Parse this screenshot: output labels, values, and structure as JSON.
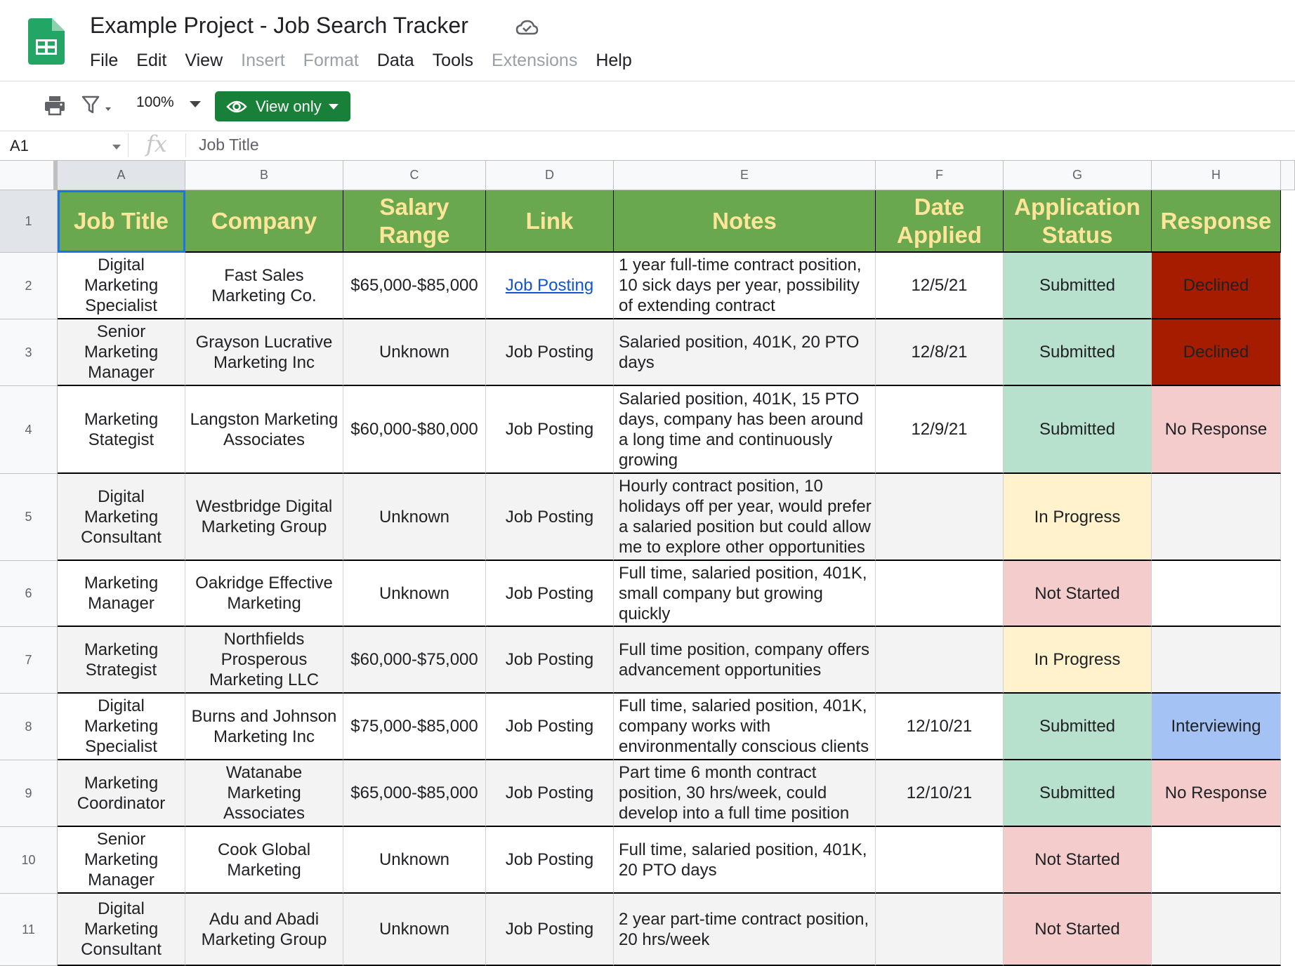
{
  "app": {
    "title": "Example Project - Job Search Tracker",
    "menu": [
      {
        "label": "File",
        "enabled": true
      },
      {
        "label": "Edit",
        "enabled": true
      },
      {
        "label": "View",
        "enabled": true
      },
      {
        "label": "Insert",
        "enabled": false
      },
      {
        "label": "Format",
        "enabled": false
      },
      {
        "label": "Data",
        "enabled": true
      },
      {
        "label": "Tools",
        "enabled": true
      },
      {
        "label": "Extensions",
        "enabled": false
      },
      {
        "label": "Help",
        "enabled": true
      }
    ]
  },
  "toolbar": {
    "zoom": "100%",
    "view_only_label": "View only",
    "accent": "#188038",
    "icons": [
      "printer-icon",
      "filter-icon",
      "eye-icon",
      "cloud-icon"
    ]
  },
  "formula_bar": {
    "cell_ref": "A1",
    "fx": "fx",
    "content": "Job Title"
  },
  "sheet": {
    "column_letters": [
      "A",
      "B",
      "C",
      "D",
      "E",
      "F",
      "G",
      "H"
    ],
    "row_numbers": [
      "1",
      "2",
      "3",
      "4",
      "5",
      "6",
      "7",
      "8",
      "9",
      "10",
      "11"
    ],
    "header_color": "#6aa84f",
    "header_text_color": "#ffe599",
    "headers": [
      "Job Title",
      "Company",
      "Salary Range",
      "Link",
      "Notes",
      "Date Applied",
      "Application Status",
      "Response"
    ],
    "rows": [
      {
        "job_title": "Digital Marketing Specialist",
        "company": "Fast Sales Marketing Co.",
        "salary": "$65,000-$85,000",
        "link": "Job Posting",
        "link_is_hyperlink": true,
        "notes": "1 year full-time contract position, 10 sick days per year, possibility of extending contract",
        "date": "12/5/21",
        "status": "Submitted",
        "response": "Declined"
      },
      {
        "job_title": "Senior Marketing Manager",
        "company": "Grayson Lucrative Marketing Inc",
        "salary": "Unknown",
        "link": "Job Posting",
        "link_is_hyperlink": false,
        "notes": "Salaried position, 401K, 20 PTO days",
        "date": "12/8/21",
        "status": "Submitted",
        "response": "Declined"
      },
      {
        "job_title": "Marketing Stategist",
        "company": "Langston Marketing Associates",
        "salary": "$60,000-$80,000",
        "link": "Job Posting",
        "link_is_hyperlink": false,
        "notes": "Salaried position, 401K, 15 PTO days, company has been around a long time and continuously growing",
        "date": "12/9/21",
        "status": "Submitted",
        "response": "No Response"
      },
      {
        "job_title": "Digital Marketing Consultant",
        "company": "Westbridge Digital Marketing Group",
        "salary": "Unknown",
        "link": "Job Posting",
        "link_is_hyperlink": false,
        "notes": "Hourly contract position, 10 holidays off per year, would prefer a salaried position but could allow me to explore other opportunities",
        "date": "",
        "status": "In Progress",
        "response": ""
      },
      {
        "job_title": "Marketing Manager",
        "company": "Oakridge Effective Marketing",
        "salary": "Unknown",
        "link": "Job Posting",
        "link_is_hyperlink": false,
        "notes": "Full time, salaried position, 401K, small company but growing quickly",
        "date": "",
        "status": "Not Started",
        "response": ""
      },
      {
        "job_title": "Marketing Strategist",
        "company": "Northfields Prosperous Marketing LLC",
        "salary": "$60,000-$75,000",
        "link": "Job Posting",
        "link_is_hyperlink": false,
        "notes": "Full time position, company offers advancement opportunities",
        "date": "",
        "status": "In Progress",
        "response": ""
      },
      {
        "job_title": "Digital Marketing Specialist",
        "company": "Burns and Johnson Marketing Inc",
        "salary": "$75,000-$85,000",
        "link": "Job Posting",
        "link_is_hyperlink": false,
        "notes": "Full time, salaried position, 401K, company works with environmentally conscious clients",
        "date": "12/10/21",
        "status": "Submitted",
        "response": "Interviewing"
      },
      {
        "job_title": "Marketing Coordinator",
        "company": "Watanabe Marketing Associates",
        "salary": "$65,000-$85,000",
        "link": "Job Posting",
        "link_is_hyperlink": false,
        "notes": "Part time 6 month contract position, 30 hrs/week, could develop into a full time position",
        "date": "12/10/21",
        "status": "Submitted",
        "response": "No Response"
      },
      {
        "job_title": "Senior Marketing Manager",
        "company": "Cook Global Marketing",
        "salary": "Unknown",
        "link": "Job Posting",
        "link_is_hyperlink": false,
        "notes": "Full time, salaried position, 401K, 20 PTO days",
        "date": "",
        "status": "Not Started",
        "response": ""
      },
      {
        "job_title": "Digital Marketing Consultant",
        "company": "Adu and Abadi Marketing Group",
        "salary": "Unknown",
        "link": "Job Posting",
        "link_is_hyperlink": false,
        "notes": "2 year part-time contract position, 20 hrs/week",
        "date": "",
        "status": "Not Started",
        "response": ""
      }
    ],
    "status_colors": {
      "Submitted": "#b7e1cd",
      "In Progress": "#fff2cc",
      "Not Started": "#f4cccc"
    },
    "response_colors": {
      "Declined": "#a61c00",
      "No Response": "#f4cccc",
      "Interviewing": "#a4c2f4"
    },
    "stripe_colors": [
      "#ffffff",
      "#f3f3f3"
    ]
  }
}
